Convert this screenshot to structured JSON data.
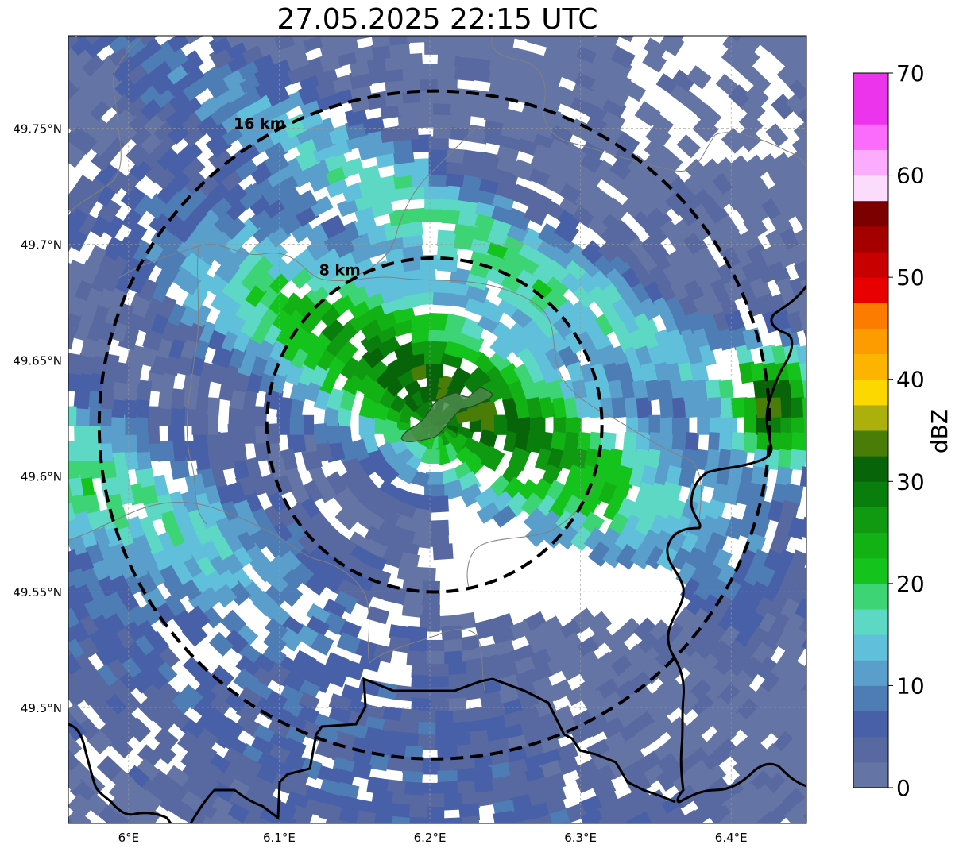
{
  "title": "27.05.2025 22:15 UTC",
  "map": {
    "lon_range": [
      5.96,
      6.45
    ],
    "lat_range": [
      49.45,
      49.79
    ],
    "xticks": [
      {
        "value": 6.0,
        "label": "6°E"
      },
      {
        "value": 6.1,
        "label": "6.1°E"
      },
      {
        "value": 6.2,
        "label": "6.2°E"
      },
      {
        "value": 6.3,
        "label": "6.3°E"
      },
      {
        "value": 6.4,
        "label": "6.4°E"
      }
    ],
    "yticks": [
      {
        "value": 49.75,
        "label": "49.75°N"
      },
      {
        "value": 49.7,
        "label": "49.7°N"
      },
      {
        "value": 49.65,
        "label": "49.65°N"
      },
      {
        "value": 49.6,
        "label": "49.6°N"
      },
      {
        "value": 49.55,
        "label": "49.55°N"
      },
      {
        "value": 49.5,
        "label": "49.5°N"
      }
    ],
    "gridlines": true,
    "range_rings": [
      {
        "label": "8 km",
        "radius_km": 8
      },
      {
        "label": "16 km",
        "radius_km": 16
      }
    ],
    "ring_center": {
      "lon": 6.203,
      "lat": 49.622
    },
    "highlighted_area_color": "#4a8a4a"
  },
  "colorbar": {
    "label": "dBZ",
    "vmin": 0,
    "vmax": 70,
    "step": 2.5,
    "ticks": [
      {
        "value": 0,
        "label": "0"
      },
      {
        "value": 10,
        "label": "10"
      },
      {
        "value": 20,
        "label": "20"
      },
      {
        "value": 30,
        "label": "30"
      },
      {
        "value": 40,
        "label": "40"
      },
      {
        "value": 50,
        "label": "50"
      },
      {
        "value": 60,
        "label": "60"
      },
      {
        "value": 70,
        "label": "70"
      }
    ],
    "colors": [
      "#6474a4",
      "#5868a0",
      "#4860a8",
      "#4e7cb4",
      "#5a9ecc",
      "#60c0dc",
      "#5cd8c4",
      "#3cd474",
      "#14c41c",
      "#12b214",
      "#0f9a12",
      "#0a7e0c",
      "#086408",
      "#4a7c08",
      "#acb00c",
      "#fcd800",
      "#fcb400",
      "#fc9c00",
      "#fc7c00",
      "#e80000",
      "#c80000",
      "#a40000",
      "#7c0000",
      "#fcdcfc",
      "#fcacfc",
      "#fc6cfc",
      "#ec34ec",
      "#ec34ec"
    ]
  }
}
